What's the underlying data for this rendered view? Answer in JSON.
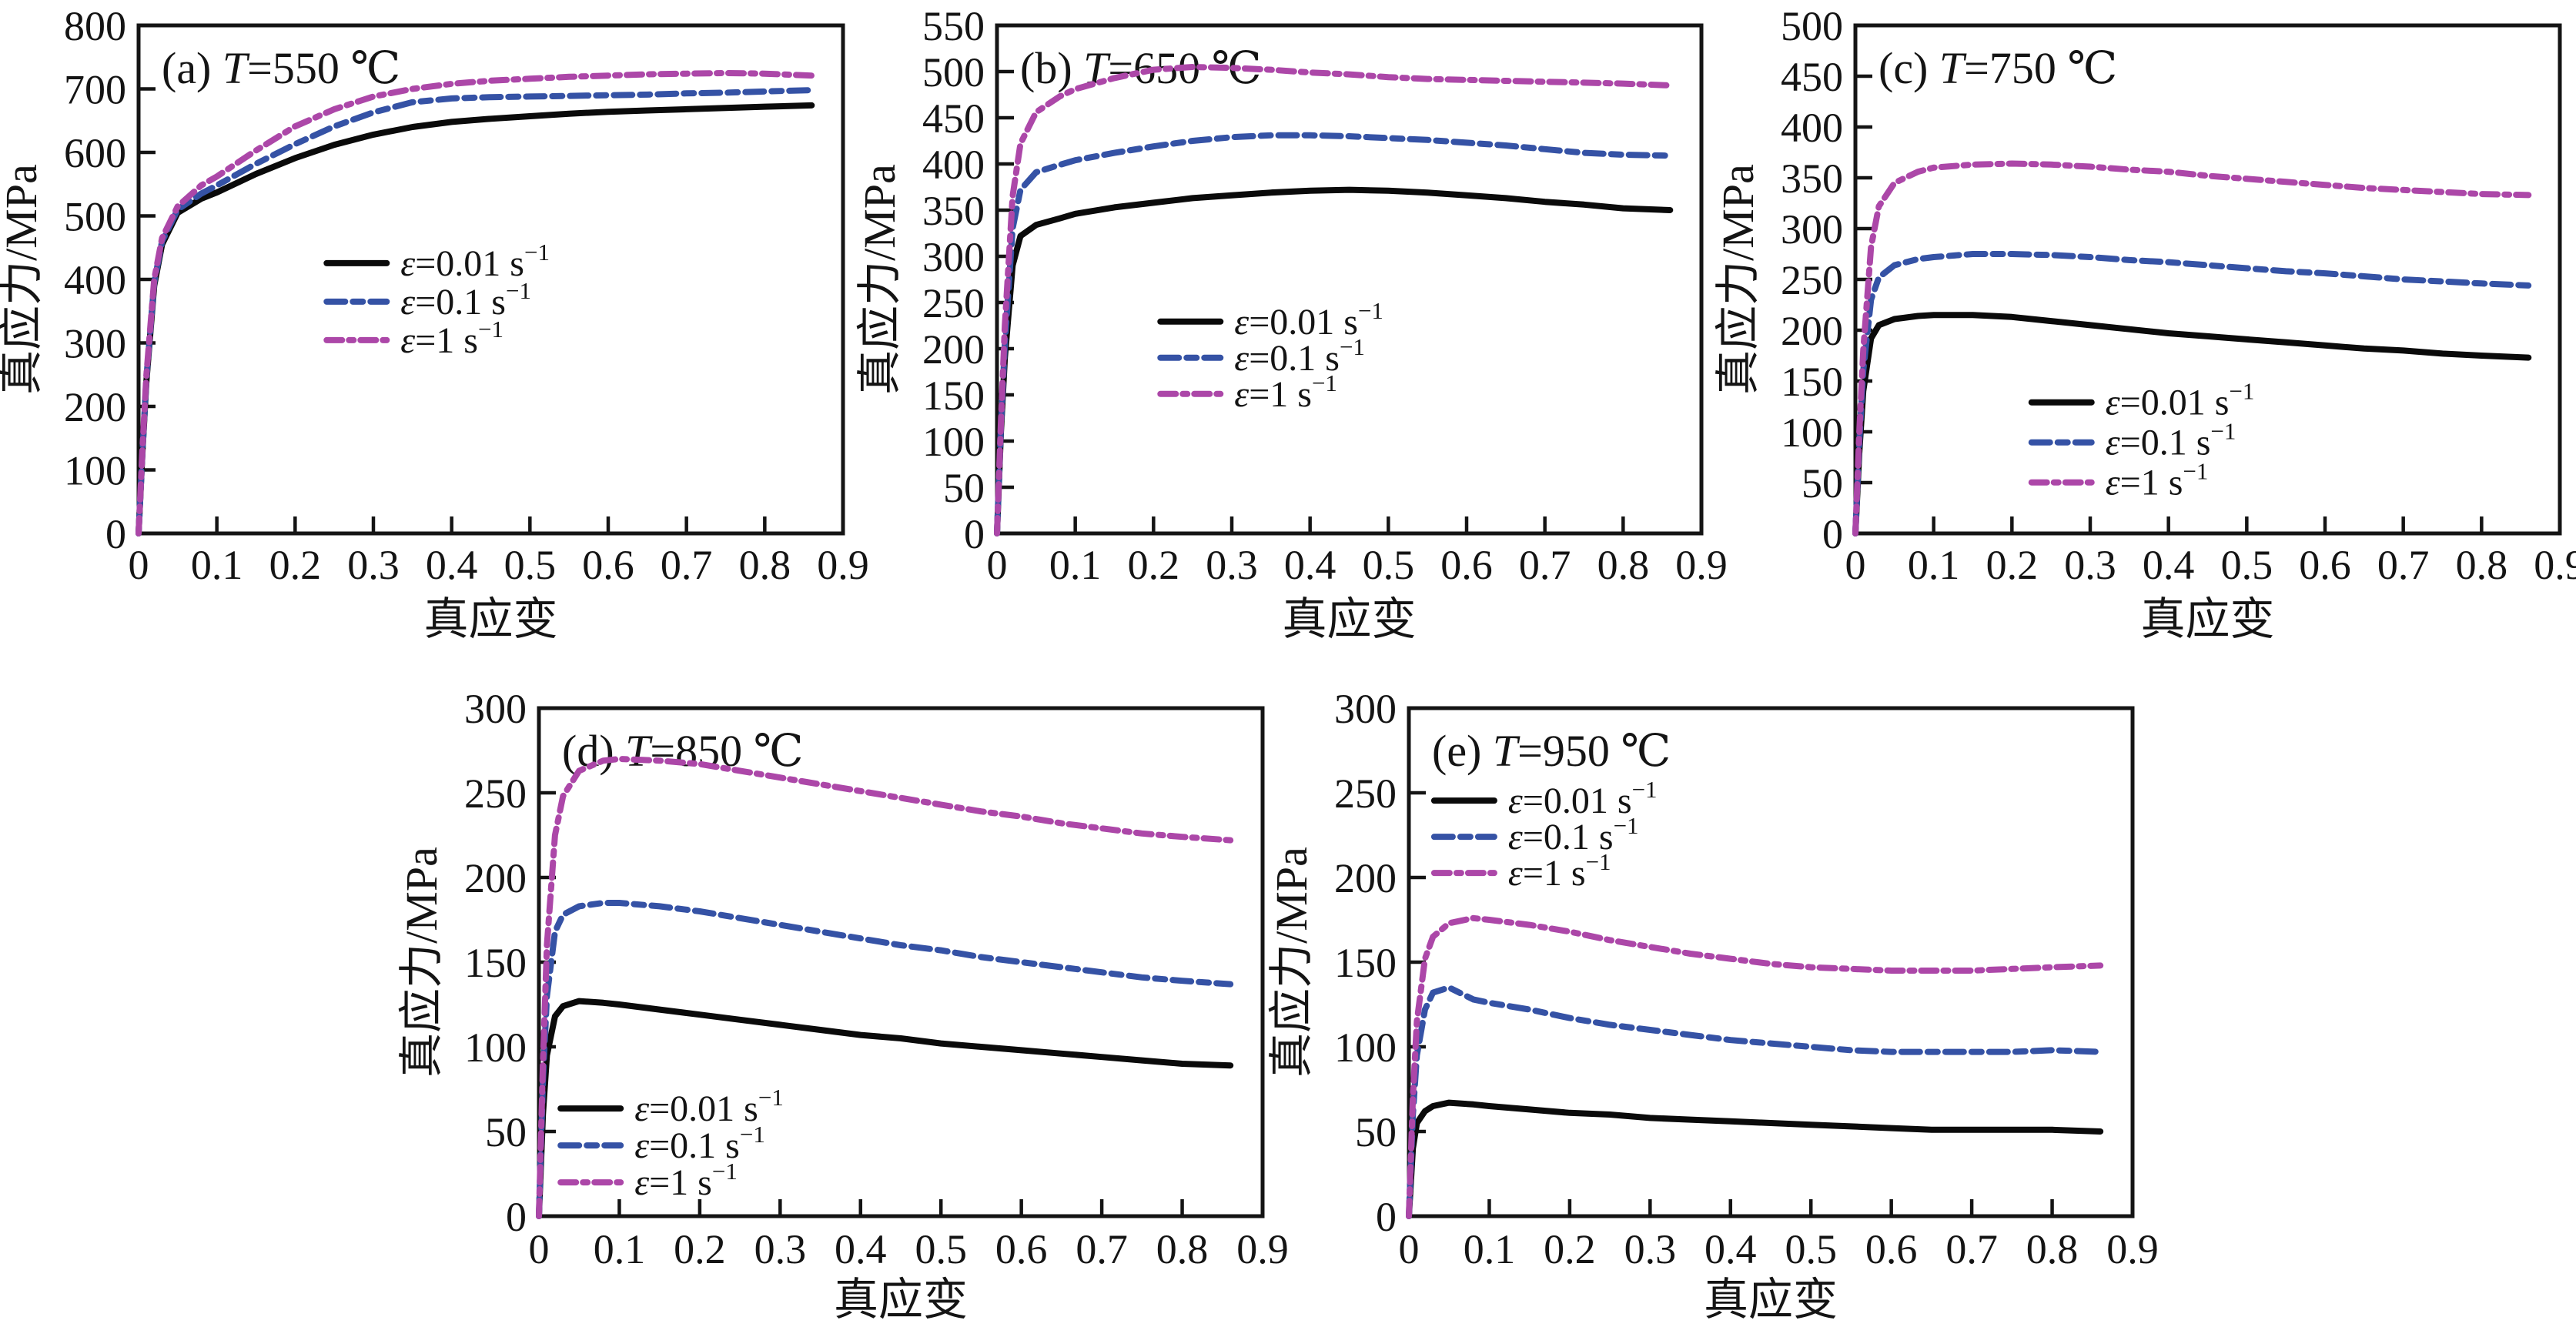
{
  "figure": {
    "background": "#ffffff",
    "xlabel": "真应变",
    "ylabel": "真应力/MPa",
    "xlim": [
      0,
      0.9
    ],
    "xticks": [
      0,
      0.1,
      0.2,
      0.3,
      0.4,
      0.5,
      0.6,
      0.7,
      0.8,
      0.9
    ],
    "legend_entries": [
      {
        "key": "e001",
        "eps": "ε",
        "main": "=0.01 s",
        "sup": "−1",
        "color": "#0a0a0a",
        "line": "solid"
      },
      {
        "key": "e01",
        "eps": "ε",
        "main": "=0.1 s",
        "sup": "−1",
        "color": "#3552A5",
        "line": "dash"
      },
      {
        "key": "e1",
        "eps": "ε",
        "main": "=1 s",
        "sup": "−1",
        "color": "#AC47A8",
        "line": "dash-dot"
      }
    ]
  },
  "chart_data": [
    {
      "id": "a",
      "type": "line",
      "title_prefix": "(a) ",
      "title_var": "T",
      "title_rest": "=550 ℃",
      "temperature_C": 550,
      "xlabel": "真应变",
      "ylabel": "真应力/MPa",
      "xlim": [
        0,
        0.9
      ],
      "ylim": [
        0,
        800
      ],
      "yticks": [
        0,
        100,
        200,
        300,
        400,
        500,
        600,
        700,
        800
      ],
      "grid": false,
      "legend_pos": [
        0.267,
        0.468
      ],
      "x": [
        0,
        0.005,
        0.01,
        0.02,
        0.03,
        0.05,
        0.08,
        0.1,
        0.15,
        0.2,
        0.25,
        0.3,
        0.35,
        0.4,
        0.45,
        0.5,
        0.55,
        0.6,
        0.65,
        0.7,
        0.75,
        0.8,
        0.86
      ],
      "series": [
        {
          "name": "ε=0.01 s⁻¹",
          "rate": 0.01,
          "values": [
            0,
            130,
            240,
            390,
            455,
            505,
            527,
            537,
            566,
            591,
            612,
            628,
            640,
            648,
            653,
            657,
            661,
            664,
            666,
            668,
            670,
            672,
            674
          ]
        },
        {
          "name": "ε=0.1 s⁻¹",
          "rate": 0.1,
          "values": [
            0,
            130,
            245,
            395,
            460,
            510,
            535,
            548,
            582,
            613,
            641,
            663,
            679,
            685,
            687,
            688,
            689,
            690,
            691,
            693,
            694,
            696,
            698
          ]
        },
        {
          "name": "ε=1 s⁻¹",
          "rate": 1,
          "values": [
            0,
            135,
            250,
            400,
            465,
            515,
            548,
            562,
            603,
            641,
            668,
            688,
            700,
            708,
            713,
            716,
            719,
            721,
            723,
            724,
            725,
            724,
            721
          ]
        }
      ]
    },
    {
      "id": "b",
      "type": "line",
      "title_prefix": "(b) ",
      "title_var": "T",
      "title_rest": "=650 ℃",
      "temperature_C": 650,
      "xlabel": "真应变",
      "ylabel": "真应力/MPa",
      "xlim": [
        0,
        0.9
      ],
      "ylim": [
        0,
        550
      ],
      "yticks": [
        0,
        50,
        100,
        150,
        200,
        250,
        300,
        350,
        400,
        450,
        500,
        550
      ],
      "grid": false,
      "legend_pos": [
        0.232,
        0.583
      ],
      "x": [
        0,
        0.005,
        0.01,
        0.02,
        0.03,
        0.05,
        0.08,
        0.1,
        0.15,
        0.2,
        0.25,
        0.3,
        0.35,
        0.4,
        0.45,
        0.5,
        0.55,
        0.6,
        0.65,
        0.7,
        0.75,
        0.8,
        0.86
      ],
      "series": [
        {
          "name": "ε=0.01 s⁻¹",
          "rate": 0.01,
          "values": [
            0,
            110,
            190,
            290,
            322,
            334,
            341,
            346,
            353,
            358,
            363,
            366,
            369,
            371,
            372,
            371,
            369,
            366,
            363,
            359,
            356,
            352,
            350
          ]
        },
        {
          "name": "ε=0.1 s⁻¹",
          "rate": 0.1,
          "values": [
            0,
            115,
            205,
            330,
            372,
            391,
            399,
            404,
            412,
            419,
            425,
            429,
            431,
            431,
            430,
            428,
            426,
            423,
            420,
            416,
            412,
            410,
            409
          ]
        },
        {
          "name": "ε=1 s⁻¹",
          "rate": 1,
          "values": [
            0,
            120,
            225,
            365,
            422,
            456,
            473,
            481,
            493,
            502,
            505,
            504,
            502,
            499,
            497,
            494,
            492,
            491,
            490,
            489,
            488,
            487,
            485
          ]
        }
      ]
    },
    {
      "id": "c",
      "type": "line",
      "title_prefix": "(c) ",
      "title_var": "T",
      "title_rest": "=750 ℃",
      "temperature_C": 750,
      "xlabel": "真应变",
      "ylabel": "真应力/MPa",
      "xlim": [
        0,
        0.9
      ],
      "ylim": [
        0,
        500
      ],
      "yticks": [
        0,
        50,
        100,
        150,
        200,
        250,
        300,
        350,
        400,
        450,
        500
      ],
      "grid": false,
      "legend_pos": [
        0.25,
        0.742
      ],
      "x": [
        0,
        0.005,
        0.01,
        0.02,
        0.03,
        0.05,
        0.08,
        0.1,
        0.15,
        0.2,
        0.25,
        0.3,
        0.35,
        0.4,
        0.45,
        0.5,
        0.55,
        0.6,
        0.65,
        0.7,
        0.75,
        0.8,
        0.86
      ],
      "series": [
        {
          "name": "ε=0.01 s⁻¹",
          "rate": 0.01,
          "values": [
            0,
            80,
            140,
            192,
            205,
            211,
            214,
            215,
            215,
            213,
            209,
            205,
            201,
            197,
            194,
            191,
            188,
            185,
            182,
            180,
            177,
            175,
            173
          ]
        },
        {
          "name": "ε=0.1 s⁻¹",
          "rate": 0.1,
          "values": [
            0,
            90,
            160,
            230,
            252,
            264,
            270,
            272,
            275,
            275,
            274,
            272,
            269,
            267,
            264,
            261,
            258,
            256,
            253,
            250,
            248,
            246,
            244
          ]
        },
        {
          "name": "ε=1 s⁻¹",
          "rate": 1,
          "values": [
            0,
            100,
            180,
            282,
            322,
            345,
            356,
            360,
            363,
            364,
            363,
            361,
            358,
            356,
            352,
            349,
            346,
            343,
            340,
            338,
            336,
            334,
            333
          ]
        }
      ]
    },
    {
      "id": "d",
      "type": "line",
      "title_prefix": "(d) ",
      "title_var": "T",
      "title_rest": "=850 ℃",
      "temperature_C": 850,
      "xlabel": "真应变",
      "ylabel": "真应力/MPa",
      "xlim": [
        0,
        0.9
      ],
      "ylim": [
        0,
        300
      ],
      "yticks": [
        0,
        50,
        100,
        150,
        200,
        250,
        300
      ],
      "grid": false,
      "legend_pos": [
        0.03,
        0.788
      ],
      "x": [
        0,
        0.005,
        0.01,
        0.02,
        0.03,
        0.05,
        0.08,
        0.1,
        0.15,
        0.2,
        0.25,
        0.3,
        0.35,
        0.4,
        0.45,
        0.5,
        0.55,
        0.6,
        0.65,
        0.7,
        0.75,
        0.8,
        0.86
      ],
      "series": [
        {
          "name": "ε=0.01 s⁻¹",
          "rate": 0.01,
          "values": [
            0,
            60,
            95,
            118,
            124,
            127,
            126,
            125,
            122,
            119,
            116,
            113,
            110,
            107,
            105,
            102,
            100,
            98,
            96,
            94,
            92,
            90,
            89
          ]
        },
        {
          "name": "ε=0.1 s⁻¹",
          "rate": 0.1,
          "values": [
            0,
            80,
            130,
            168,
            178,
            183,
            185,
            185,
            183,
            180,
            176,
            172,
            168,
            164,
            160,
            157,
            153,
            150,
            147,
            144,
            141,
            139,
            137
          ]
        },
        {
          "name": "ε=1 s⁻¹",
          "rate": 1,
          "values": [
            0,
            90,
            160,
            225,
            248,
            263,
            269,
            270,
            269,
            267,
            263,
            259,
            255,
            251,
            247,
            243,
            239,
            236,
            232,
            229,
            226,
            224,
            222
          ]
        }
      ]
    },
    {
      "id": "e",
      "type": "line",
      "title_prefix": "(e) ",
      "title_var": "T",
      "title_rest": "=950 ℃",
      "temperature_C": 950,
      "xlabel": "真应变",
      "ylabel": "真应力/MPa",
      "xlim": [
        0,
        0.9
      ],
      "ylim": [
        0,
        300
      ],
      "yticks": [
        0,
        50,
        100,
        150,
        200,
        250,
        300
      ],
      "grid": false,
      "legend_pos": [
        0.035,
        0.182
      ],
      "x": [
        0,
        0.005,
        0.01,
        0.02,
        0.03,
        0.05,
        0.08,
        0.1,
        0.15,
        0.2,
        0.25,
        0.3,
        0.35,
        0.4,
        0.45,
        0.5,
        0.55,
        0.6,
        0.65,
        0.7,
        0.75,
        0.8,
        0.86
      ],
      "series": [
        {
          "name": "ε=0.01 s⁻¹",
          "rate": 0.01,
          "values": [
            0,
            40,
            55,
            62,
            65,
            67,
            66,
            65,
            63,
            61,
            60,
            58,
            57,
            56,
            55,
            54,
            53,
            52,
            51,
            51,
            51,
            51,
            50
          ]
        },
        {
          "name": "ε=0.1 s⁻¹",
          "rate": 0.1,
          "values": [
            0,
            60,
            95,
            122,
            132,
            135,
            128,
            126,
            122,
            117,
            113,
            110,
            107,
            104,
            102,
            100,
            98,
            97,
            97,
            97,
            97,
            98,
            97
          ]
        },
        {
          "name": "ε=1 s⁻¹",
          "rate": 1,
          "values": [
            0,
            70,
            115,
            152,
            165,
            173,
            176,
            175,
            172,
            168,
            163,
            159,
            155,
            152,
            149,
            147,
            146,
            145,
            145,
            145,
            146,
            147,
            148
          ]
        }
      ]
    }
  ]
}
